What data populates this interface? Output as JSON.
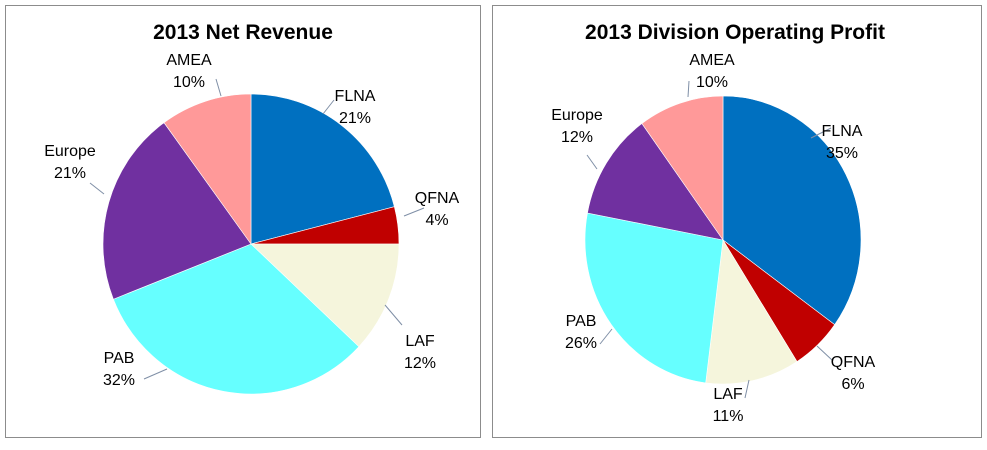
{
  "chart_data": [
    {
      "type": "pie",
      "title": "2013 Net Revenue",
      "start_angle": "12 o'clock",
      "direction": "clockwise",
      "slices": [
        {
          "label": "FLNA",
          "value": 21,
          "display": "21%",
          "color": "#0070c0"
        },
        {
          "label": "QFNA",
          "value": 4,
          "display": "4%",
          "color": "#c00000"
        },
        {
          "label": "LAF",
          "value": 12,
          "display": "12%",
          "color": "#f5f5dc"
        },
        {
          "label": "PAB",
          "value": 32,
          "display": "32%",
          "color": "#66ffff"
        },
        {
          "label": "Europe",
          "value": 21,
          "display": "21%",
          "color": "#7030a0"
        },
        {
          "label": "AMEA",
          "value": 10,
          "display": "10%",
          "color": "#ff9999"
        }
      ]
    },
    {
      "type": "pie",
      "title": "2013 Division Operating Profit",
      "start_angle": "12 o'clock",
      "direction": "clockwise",
      "slices": [
        {
          "label": "FLNA",
          "value": 35,
          "display": "35%",
          "color": "#0070c0"
        },
        {
          "label": "QFNA",
          "value": 6,
          "display": "6%",
          "color": "#c00000"
        },
        {
          "label": "LAF",
          "value": 11,
          "display": "11%",
          "color": "#f5f5dc"
        },
        {
          "label": "PAB",
          "value": 26,
          "display": "26%",
          "color": "#66ffff"
        },
        {
          "label": "Europe",
          "value": 12,
          "display": "12%",
          "color": "#7030a0"
        },
        {
          "label": "AMEA",
          "value": 10,
          "display": "10%",
          "color": "#ff9999"
        }
      ]
    }
  ]
}
